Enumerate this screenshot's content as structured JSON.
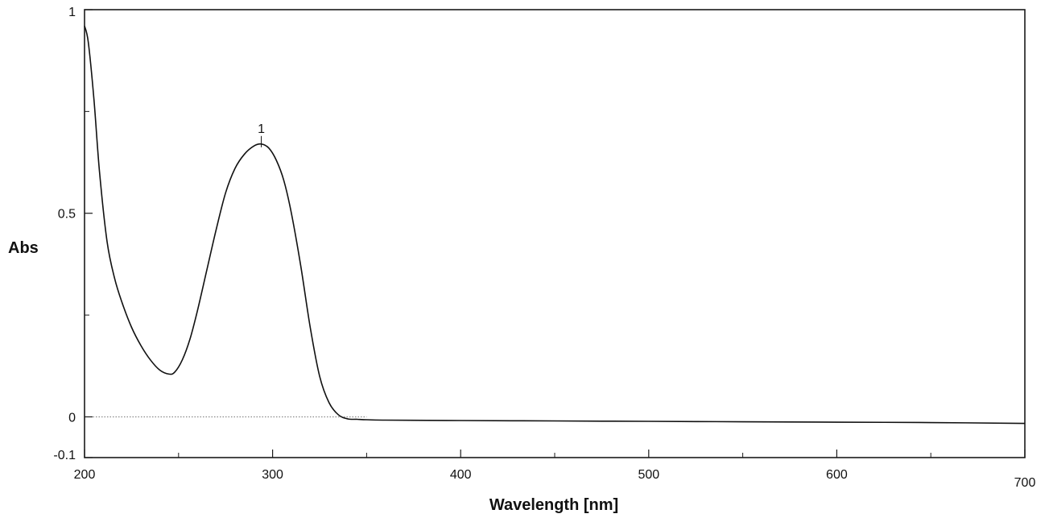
{
  "chart_data": {
    "type": "line",
    "title": "",
    "xlabel": "Wavelength [nm]",
    "ylabel": "Abs",
    "xlim": [
      200,
      700
    ],
    "ylim": [
      -0.1,
      1
    ],
    "x_ticks": [
      200,
      300,
      400,
      500,
      600,
      700
    ],
    "x_tick_labels": [
      "200",
      "300",
      "400",
      "500",
      "600",
      "700"
    ],
    "x_minor_ticks": [
      250,
      350,
      450,
      550,
      650
    ],
    "y_ticks": [
      -0.1,
      0,
      0.5,
      1
    ],
    "y_tick_labels": [
      "-0.1",
      "0",
      "0.5",
      "1"
    ],
    "y_minor_ticks": [
      0.25,
      0.75
    ],
    "grid": false,
    "baseline": {
      "y": 0,
      "style": "dotted",
      "x_range": [
        200,
        350
      ]
    },
    "series": [
      {
        "x": [
          200,
          202,
          205,
          208,
          212,
          216,
          220,
          225,
          230,
          235,
          240,
          245,
          248,
          252,
          256,
          260,
          265,
          270,
          275,
          280,
          285,
          290,
          294,
          298,
          302,
          306,
          310,
          315,
          320,
          325,
          330,
          335,
          340,
          345,
          350,
          360,
          400,
          450,
          500,
          550,
          600,
          650,
          700
        ],
        "y": [
          0.96,
          0.92,
          0.78,
          0.6,
          0.43,
          0.34,
          0.28,
          0.22,
          0.175,
          0.14,
          0.115,
          0.105,
          0.11,
          0.14,
          0.19,
          0.26,
          0.36,
          0.46,
          0.55,
          0.61,
          0.645,
          0.665,
          0.67,
          0.66,
          0.63,
          0.58,
          0.5,
          0.37,
          0.22,
          0.1,
          0.035,
          0.005,
          -0.005,
          -0.006,
          -0.007,
          -0.008,
          -0.009,
          -0.01,
          -0.011,
          -0.012,
          -0.013,
          -0.014,
          -0.016
        ]
      }
    ],
    "peaks": [
      {
        "label": "1",
        "x": 294,
        "y": 0.67
      }
    ]
  }
}
